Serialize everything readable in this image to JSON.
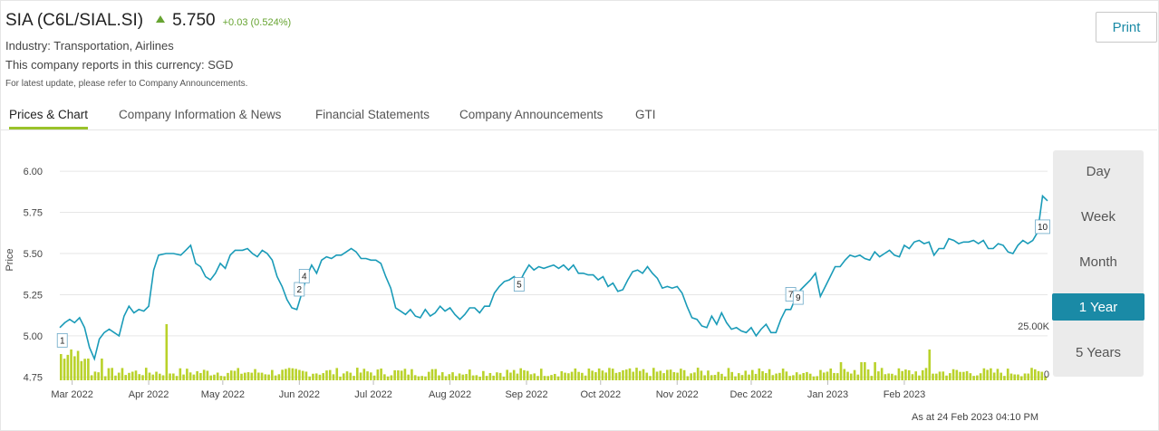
{
  "header": {
    "company": "SIA (C6L/SIAL.SI)",
    "price": "5.750",
    "change": "+0.03 (0.524%)",
    "industry": "Industry: Transportation, Airlines",
    "currency": "This company reports in this currency: SGD",
    "note": "For latest update, please refer to Company Announcements.",
    "print_label": "Print"
  },
  "colors": {
    "line": "#1a9bb8",
    "volume": "#b9d22a",
    "accent": "#1a8aa6",
    "up": "#67a431"
  },
  "tabs": [
    {
      "label": "Prices & Chart",
      "active": true
    },
    {
      "label": "Company Information & News",
      "active": false
    },
    {
      "label": "Financial Statements",
      "active": false
    },
    {
      "label": "Company Announcements",
      "active": false
    },
    {
      "label": "GTI",
      "active": false
    }
  ],
  "range_buttons": [
    {
      "label": "Day",
      "active": false
    },
    {
      "label": "Week",
      "active": false
    },
    {
      "label": "Month",
      "active": false
    },
    {
      "label": "1 Year",
      "active": true
    },
    {
      "label": "5 Years",
      "active": false
    }
  ],
  "as_at": "As at 24 Feb 2023 04:10 PM",
  "chart_data": {
    "type": "line",
    "ylabel": "Price",
    "ylim": [
      4.73,
      6.05
    ],
    "yticks": [
      "6.00",
      "5.75",
      "5.50",
      "5.25",
      "5.00",
      "4.75"
    ],
    "xticks": [
      "Mar 2022",
      "Apr 2022",
      "May 2022",
      "Jun 2022",
      "Jul 2022",
      "Aug 2022",
      "Sep 2022",
      "Oct 2022",
      "Nov 2022",
      "Dec 2022",
      "Jan 2023",
      "Feb 2023"
    ],
    "volume_axis_labels": [
      "25.00K",
      "0"
    ],
    "grid": true,
    "series": [
      {
        "points": [
          [
            "2022-02-24",
            5.05
          ],
          [
            "2022-02-26",
            5.08
          ],
          [
            "2022-02-28",
            5.1
          ],
          [
            "2022-03-02",
            5.08
          ],
          [
            "2022-03-04",
            5.11
          ],
          [
            "2022-03-06",
            5.05
          ],
          [
            "2022-03-08",
            4.93
          ],
          [
            "2022-03-10",
            4.86
          ],
          [
            "2022-03-12",
            4.98
          ],
          [
            "2022-03-14",
            5.02
          ],
          [
            "2022-03-16",
            5.04
          ],
          [
            "2022-03-18",
            5.02
          ],
          [
            "2022-03-20",
            5.0
          ],
          [
            "2022-03-22",
            5.12
          ],
          [
            "2022-03-24",
            5.18
          ],
          [
            "2022-03-26",
            5.14
          ],
          [
            "2022-03-28",
            5.16
          ],
          [
            "2022-03-30",
            5.15
          ],
          [
            "2022-04-01",
            5.18
          ],
          [
            "2022-04-03",
            5.4
          ],
          [
            "2022-04-05",
            5.49
          ],
          [
            "2022-04-08",
            5.5
          ],
          [
            "2022-04-11",
            5.5
          ],
          [
            "2022-04-14",
            5.49
          ],
          [
            "2022-04-16",
            5.52
          ],
          [
            "2022-04-18",
            5.55
          ],
          [
            "2022-04-20",
            5.44
          ],
          [
            "2022-04-22",
            5.42
          ],
          [
            "2022-04-24",
            5.36
          ],
          [
            "2022-04-26",
            5.34
          ],
          [
            "2022-04-28",
            5.38
          ],
          [
            "2022-04-30",
            5.44
          ],
          [
            "2022-05-02",
            5.41
          ],
          [
            "2022-05-04",
            5.49
          ],
          [
            "2022-05-06",
            5.52
          ],
          [
            "2022-05-09",
            5.52
          ],
          [
            "2022-05-11",
            5.53
          ],
          [
            "2022-05-13",
            5.5
          ],
          [
            "2022-05-15",
            5.48
          ],
          [
            "2022-05-17",
            5.52
          ],
          [
            "2022-05-19",
            5.5
          ],
          [
            "2022-05-21",
            5.46
          ],
          [
            "2022-05-23",
            5.36
          ],
          [
            "2022-05-25",
            5.3
          ],
          [
            "2022-05-27",
            5.22
          ],
          [
            "2022-05-29",
            5.17
          ],
          [
            "2022-05-31",
            5.16
          ],
          [
            "2022-06-02",
            5.26
          ],
          [
            "2022-06-04",
            5.36
          ],
          [
            "2022-06-06",
            5.43
          ],
          [
            "2022-06-08",
            5.38
          ],
          [
            "2022-06-10",
            5.46
          ],
          [
            "2022-06-12",
            5.48
          ],
          [
            "2022-06-14",
            5.47
          ],
          [
            "2022-06-16",
            5.49
          ],
          [
            "2022-06-18",
            5.49
          ],
          [
            "2022-06-20",
            5.51
          ],
          [
            "2022-06-22",
            5.53
          ],
          [
            "2022-06-24",
            5.51
          ],
          [
            "2022-06-26",
            5.47
          ],
          [
            "2022-06-28",
            5.47
          ],
          [
            "2022-06-30",
            5.46
          ],
          [
            "2022-07-02",
            5.46
          ],
          [
            "2022-07-04",
            5.44
          ],
          [
            "2022-07-06",
            5.36
          ],
          [
            "2022-07-08",
            5.29
          ],
          [
            "2022-07-10",
            5.17
          ],
          [
            "2022-07-12",
            5.15
          ],
          [
            "2022-07-14",
            5.13
          ],
          [
            "2022-07-16",
            5.16
          ],
          [
            "2022-07-18",
            5.12
          ],
          [
            "2022-07-20",
            5.11
          ],
          [
            "2022-07-22",
            5.16
          ],
          [
            "2022-07-24",
            5.12
          ],
          [
            "2022-07-26",
            5.14
          ],
          [
            "2022-07-28",
            5.18
          ],
          [
            "2022-07-30",
            5.15
          ],
          [
            "2022-08-01",
            5.17
          ],
          [
            "2022-08-03",
            5.13
          ],
          [
            "2022-08-05",
            5.1
          ],
          [
            "2022-08-07",
            5.13
          ],
          [
            "2022-08-09",
            5.17
          ],
          [
            "2022-08-11",
            5.17
          ],
          [
            "2022-08-13",
            5.14
          ],
          [
            "2022-08-15",
            5.18
          ],
          [
            "2022-08-17",
            5.18
          ],
          [
            "2022-08-19",
            5.26
          ],
          [
            "2022-08-21",
            5.3
          ],
          [
            "2022-08-23",
            5.33
          ],
          [
            "2022-08-25",
            5.34
          ],
          [
            "2022-08-27",
            5.36
          ],
          [
            "2022-08-29",
            5.32
          ],
          [
            "2022-08-31",
            5.38
          ],
          [
            "2022-09-02",
            5.43
          ],
          [
            "2022-09-04",
            5.4
          ],
          [
            "2022-09-06",
            5.42
          ],
          [
            "2022-09-08",
            5.41
          ],
          [
            "2022-09-10",
            5.42
          ],
          [
            "2022-09-12",
            5.43
          ],
          [
            "2022-09-14",
            5.41
          ],
          [
            "2022-09-16",
            5.43
          ],
          [
            "2022-09-18",
            5.4
          ],
          [
            "2022-09-20",
            5.43
          ],
          [
            "2022-09-22",
            5.38
          ],
          [
            "2022-09-24",
            5.38
          ],
          [
            "2022-09-26",
            5.37
          ],
          [
            "2022-09-28",
            5.37
          ],
          [
            "2022-09-30",
            5.34
          ],
          [
            "2022-10-02",
            5.36
          ],
          [
            "2022-10-04",
            5.3
          ],
          [
            "2022-10-06",
            5.32
          ],
          [
            "2022-10-08",
            5.27
          ],
          [
            "2022-10-10",
            5.28
          ],
          [
            "2022-10-12",
            5.34
          ],
          [
            "2022-10-14",
            5.39
          ],
          [
            "2022-10-16",
            5.4
          ],
          [
            "2022-10-18",
            5.38
          ],
          [
            "2022-10-20",
            5.42
          ],
          [
            "2022-10-22",
            5.38
          ],
          [
            "2022-10-24",
            5.35
          ],
          [
            "2022-10-26",
            5.29
          ],
          [
            "2022-10-28",
            5.3
          ],
          [
            "2022-10-30",
            5.29
          ],
          [
            "2022-11-01",
            5.3
          ],
          [
            "2022-11-03",
            5.26
          ],
          [
            "2022-11-05",
            5.18
          ],
          [
            "2022-11-07",
            5.11
          ],
          [
            "2022-11-09",
            5.1
          ],
          [
            "2022-11-11",
            5.06
          ],
          [
            "2022-11-13",
            5.05
          ],
          [
            "2022-11-15",
            5.12
          ],
          [
            "2022-11-17",
            5.07
          ],
          [
            "2022-11-19",
            5.14
          ],
          [
            "2022-11-21",
            5.08
          ],
          [
            "2022-11-23",
            5.04
          ],
          [
            "2022-11-25",
            5.05
          ],
          [
            "2022-11-27",
            5.03
          ],
          [
            "2022-11-29",
            5.02
          ],
          [
            "2022-12-01",
            5.05
          ],
          [
            "2022-12-03",
            5.0
          ],
          [
            "2022-12-05",
            5.04
          ],
          [
            "2022-12-07",
            5.07
          ],
          [
            "2022-12-09",
            5.02
          ],
          [
            "2022-12-11",
            5.02
          ],
          [
            "2022-12-13",
            5.1
          ],
          [
            "2022-12-15",
            5.16
          ],
          [
            "2022-12-17",
            5.16
          ],
          [
            "2022-12-19",
            5.23
          ],
          [
            "2022-12-21",
            5.28
          ],
          [
            "2022-12-23",
            5.31
          ],
          [
            "2022-12-25",
            5.34
          ],
          [
            "2022-12-27",
            5.38
          ],
          [
            "2022-12-29",
            5.24
          ],
          [
            "2022-12-31",
            5.3
          ],
          [
            "2023-01-02",
            5.36
          ],
          [
            "2023-01-04",
            5.42
          ],
          [
            "2023-01-06",
            5.42
          ],
          [
            "2023-01-08",
            5.46
          ],
          [
            "2023-01-10",
            5.49
          ],
          [
            "2023-01-12",
            5.48
          ],
          [
            "2023-01-14",
            5.49
          ],
          [
            "2023-01-16",
            5.47
          ],
          [
            "2023-01-18",
            5.46
          ],
          [
            "2023-01-20",
            5.51
          ],
          [
            "2023-01-22",
            5.48
          ],
          [
            "2023-01-24",
            5.5
          ],
          [
            "2023-01-26",
            5.52
          ],
          [
            "2023-01-28",
            5.49
          ],
          [
            "2023-01-30",
            5.48
          ],
          [
            "2023-02-01",
            5.55
          ],
          [
            "2023-02-03",
            5.53
          ],
          [
            "2023-02-05",
            5.57
          ],
          [
            "2023-02-07",
            5.58
          ],
          [
            "2023-02-09",
            5.56
          ],
          [
            "2023-02-11",
            5.57
          ],
          [
            "2023-02-13",
            5.49
          ],
          [
            "2023-02-15",
            5.53
          ],
          [
            "2023-02-17",
            5.53
          ],
          [
            "2023-02-19",
            5.59
          ],
          [
            "2023-02-21",
            5.58
          ],
          [
            "2023-02-23",
            5.56
          ],
          [
            "2023-02-25",
            5.57
          ],
          [
            "2023-02-27",
            5.57
          ],
          [
            "2023-03-01",
            5.58
          ],
          [
            "2023-03-03",
            5.56
          ],
          [
            "2023-03-05",
            5.58
          ],
          [
            "2023-03-07",
            5.53
          ],
          [
            "2023-03-09",
            5.53
          ],
          [
            "2023-03-11",
            5.56
          ],
          [
            "2023-03-13",
            5.55
          ],
          [
            "2023-03-15",
            5.51
          ],
          [
            "2023-03-17",
            5.5
          ],
          [
            "2023-03-19",
            5.55
          ],
          [
            "2023-03-21",
            5.58
          ],
          [
            "2023-03-23",
            5.56
          ],
          [
            "2023-03-25",
            5.58
          ],
          [
            "2023-03-27",
            5.63
          ],
          [
            "2023-03-29",
            5.85
          ],
          [
            "2023-03-31",
            5.82
          ]
        ]
      }
    ],
    "markers": [
      "1",
      "2",
      "4",
      "5",
      "7",
      "9",
      "10"
    ]
  }
}
